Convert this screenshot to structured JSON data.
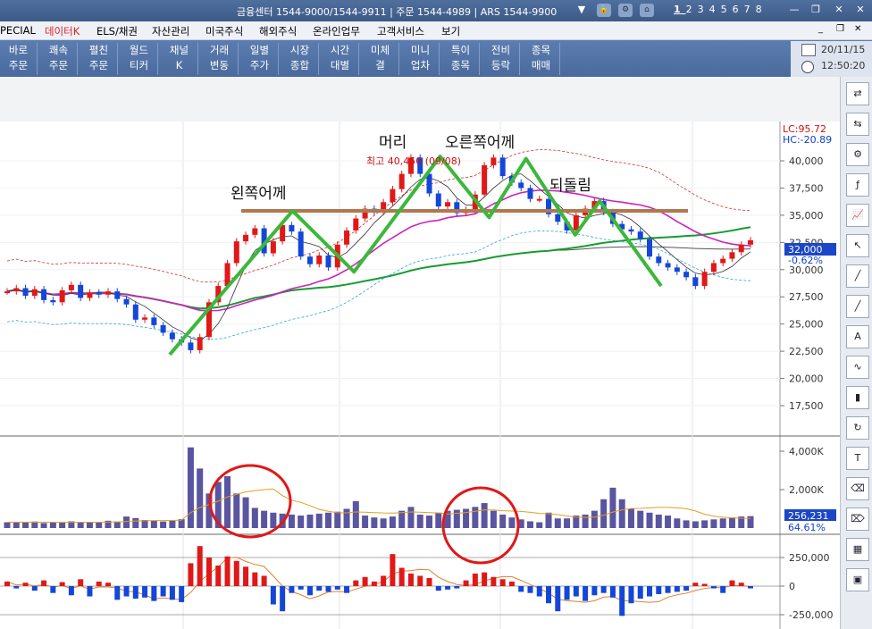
{
  "titlebar": {
    "info": "금융센터 1544-9000/1544-9911 | 주문 1544-4989 | ARS 1544-9900",
    "pages": [
      "1",
      "2",
      "3",
      "4",
      "5",
      "6",
      "7",
      "8"
    ],
    "icons": [
      "lock-icon",
      "gear-icon",
      "home-icon"
    ]
  },
  "menu": [
    {
      "label": "PECIAL",
      "active": false
    },
    {
      "label": "데이터K",
      "active": true
    },
    {
      "label": "ELS/채권",
      "active": false
    },
    {
      "label": "자산관리",
      "active": false
    },
    {
      "label": "미국주식",
      "active": false
    },
    {
      "label": "해외주식",
      "active": false
    },
    {
      "label": "온라인업무",
      "active": false
    },
    {
      "label": "고객서비스",
      "active": false
    },
    {
      "label": "보기",
      "active": false
    }
  ],
  "toolbar": [
    {
      "l1": "바로",
      "l2": "주문"
    },
    {
      "l1": "쾌속",
      "l2": "주문"
    },
    {
      "l1": "펼친",
      "l2": "주문"
    },
    {
      "l1": "월드",
      "l2": "티커"
    },
    {
      "l1": "채널",
      "l2": "K"
    },
    {
      "l1": "거래",
      "l2": "변동"
    },
    {
      "l1": "일별",
      "l2": "주가"
    },
    {
      "l1": "시장",
      "l2": "종합"
    },
    {
      "l1": "시간",
      "l2": "대별"
    },
    {
      "l1": "미체",
      "l2": "결"
    },
    {
      "l1": "미니",
      "l2": "업차"
    },
    {
      "l1": "특이",
      "l2": "종목"
    },
    {
      "l1": "전비",
      "l2": "등락"
    },
    {
      "l1": "종목",
      "l2": "매매"
    }
  ],
  "date": "20/11/15",
  "time": "12:50:20",
  "right_tools": [
    "swap-icon",
    "compare-icon",
    "settings-icon",
    "formula-icon",
    "chart-icon",
    "cursor-icon",
    "trend-icon",
    "trend-icon",
    "auto-icon",
    "wave-icon",
    "candle-icon",
    "refresh-icon",
    "text-icon",
    "eraser-icon",
    "eraser-all-icon",
    "table-icon",
    "save-icon"
  ],
  "chart_data": {
    "type": "candlestick",
    "price_axis": {
      "ticks": [
        "40,000",
        "37,500",
        "35,000",
        "32,500",
        "30,000",
        "27,500",
        "25,000",
        "22,500",
        "20,000",
        "17,500"
      ],
      "range": [
        16000,
        42200
      ]
    },
    "lc": "LC:95.72",
    "hc": "HC:-20.89",
    "current_price": "32,000",
    "change_pct": "-0.62%",
    "max_label": "최고 40,450 (09/08)",
    "annotations": {
      "left_shoulder": "왼쪽어께",
      "head": "머리",
      "right_shoulder": "오른쪽어께",
      "pullback": "되돌림"
    },
    "neckline": 35400,
    "pattern_points": [
      [
        0,
        22200
      ],
      [
        20,
        35400
      ],
      [
        30,
        29800
      ],
      [
        44,
        40400
      ],
      [
        52,
        34800
      ],
      [
        58,
        40200
      ],
      [
        66,
        33200
      ],
      [
        70,
        36300
      ],
      [
        80,
        28500
      ]
    ],
    "closes": [
      28000,
      28300,
      27600,
      28200,
      27200,
      27000,
      28100,
      28600,
      27400,
      27900,
      27700,
      28000,
      27300,
      26800,
      25400,
      25600,
      24900,
      24200,
      23600,
      23300,
      22600,
      23800,
      27000,
      28500,
      30600,
      32600,
      33200,
      33800,
      31500,
      32600,
      34100,
      33500,
      31200,
      30500,
      31300,
      30200,
      32300,
      33600,
      34700,
      35600,
      35300,
      36200,
      37400,
      38800,
      40300,
      38800,
      37000,
      35800,
      36200,
      35200,
      35500,
      36900,
      39600,
      40300,
      38600,
      38000,
      37500,
      36500,
      36500,
      35100,
      34400,
      33600,
      35000,
      35600,
      36300,
      35300,
      34200,
      33700,
      33500,
      32800,
      31200,
      30600,
      30200,
      29800,
      29300,
      28500,
      29800,
      30600,
      31000,
      31600,
      32300,
      32700
    ],
    "volume_axis": {
      "ticks": [
        "4,000K",
        "2,000K"
      ]
    },
    "volume_readout": "256,231",
    "volume_pct": "64.61%",
    "volumes": [
      300,
      320,
      280,
      340,
      260,
      300,
      280,
      350,
      280,
      300,
      320,
      380,
      340,
      600,
      520,
      420,
      380,
      340,
      380,
      460,
      4200,
      3100,
      1800,
      2400,
      2700,
      1800,
      1600,
      1050,
      900,
      800,
      750,
      700,
      650,
      700,
      750,
      800,
      850,
      1000,
      1400,
      650,
      550,
      500,
      600,
      900,
      1100,
      700,
      650,
      800,
      900,
      950,
      1000,
      1100,
      1300,
      900,
      700,
      550,
      450,
      350,
      300,
      800,
      500,
      500,
      650,
      700,
      900,
      1500,
      2100,
      1500,
      1000,
      900,
      800,
      700,
      650,
      500,
      400,
      350,
      400,
      450,
      500,
      550,
      600,
      620
    ],
    "osc_axis": {
      "ticks": [
        "250,000",
        "0",
        "-250,000"
      ]
    },
    "osc": [
      40000,
      -20000,
      30000,
      -40000,
      50000,
      -60000,
      35000,
      -80000,
      60000,
      -90000,
      40000,
      30000,
      -120000,
      -90000,
      -110000,
      -100000,
      -130000,
      -90000,
      -120000,
      -140000,
      200000,
      350000,
      250000,
      180000,
      260000,
      220000,
      170000,
      120000,
      90000,
      -160000,
      -220000,
      -60000,
      -30000,
      -80000,
      -40000,
      -50000,
      -30000,
      -60000,
      50000,
      80000,
      40000,
      90000,
      280000,
      160000,
      110000,
      90000,
      70000,
      -40000,
      -30000,
      -20000,
      50000,
      110000,
      120000,
      80000,
      60000,
      40000,
      -50000,
      -60000,
      -90000,
      -150000,
      -220000,
      -120000,
      -90000,
      -130000,
      -80000,
      -60000,
      -100000,
      -260000,
      -150000,
      -110000,
      -90000,
      -70000,
      -60000,
      -50000,
      -40000,
      30000,
      20000,
      -20000,
      -60000,
      50000,
      30000,
      -20000
    ]
  }
}
